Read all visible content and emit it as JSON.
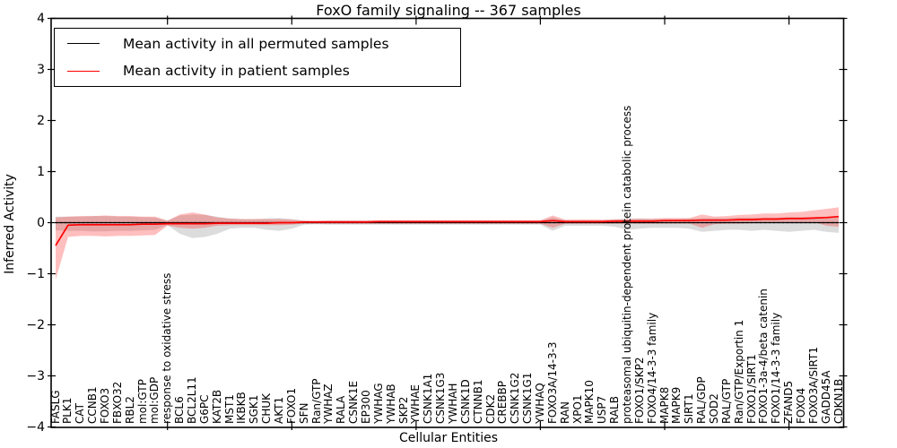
{
  "title": "FoxO family signaling -- 367 samples",
  "legend": {
    "items": [
      {
        "label": "Mean activity in all permuted samples",
        "color": "#000000"
      },
      {
        "label": "Mean activity in patient samples",
        "color": "#ff0000"
      }
    ]
  },
  "colors": {
    "patient_line": "#ff0000",
    "permuted_line": "#000000",
    "patient_band": "#ff2a2a",
    "permuted_band": "#8a8a8a",
    "axis": "#000000"
  },
  "chart_data": {
    "type": "line",
    "title": "FoxO family signaling -- 367 samples",
    "xlabel": "Cellular Entities",
    "ylabel": "Inferred Activity",
    "ylim": [
      -4,
      4
    ],
    "yticks": [
      4,
      3,
      2,
      1,
      0,
      -1,
      -2,
      -3,
      -4
    ],
    "y_tick_labels": [
      "4",
      "3",
      "2",
      "1",
      "0",
      "−1",
      "−2",
      "−3",
      "−4"
    ],
    "legend_position": "upper left",
    "grid": false,
    "zero_line": {
      "y": 0,
      "style": "dashed",
      "color": "#000000"
    },
    "categories": [
      "FASLG",
      "PLK1",
      "CAT",
      "CCNB1",
      "FOXO3",
      "FBXO32",
      "RBL2",
      "mol:GTP",
      "mol:GDP",
      "response to oxidative stress",
      "BCL6",
      "BCL2L11",
      "G6PC",
      "KAT2B",
      "MST1",
      "IKBKB",
      "SGK1",
      "CHUK",
      "AKT1",
      "FOXO1",
      "SFN",
      "Ran/GTP",
      "YWHAZ",
      "RALA",
      "CSNK1E",
      "EP300",
      "YWHAG",
      "YWHAB",
      "SKP2",
      "YWHAE",
      "CSNK1A1",
      "CSNK1G3",
      "YWHAH",
      "CSNK1D",
      "CTNNB1",
      "CDK2",
      "CREBBP",
      "CSNK1G2",
      "CSNK1G1",
      "YWHAQ",
      "FOXO3A/14-3-3",
      "RAN",
      "XPO1",
      "MAPK10",
      "USP7",
      "RALB",
      "proteasomal ubiquitin-dependent protein catabolic process",
      "FOXO1/SKP2",
      "FOXO4/14-3-3 family",
      "MAPK8",
      "MAPK9",
      "SIRT1",
      "RAL/GDP",
      "SOD2",
      "RAL/GTP",
      "Ran/GTP/Exportin 1",
      "FOXO1/SIRT1",
      "FOXO1-3a-4/beta catenin",
      "FOXO1/14-3-3 family",
      "ZFAND5",
      "FOXO4",
      "FOXO3A/SIRT1",
      "GADD45A",
      "CDKN1B"
    ],
    "series": [
      {
        "name": "Mean activity in all permuted samples",
        "color": "#000000",
        "values": [
          0,
          0,
          0,
          0,
          0,
          0,
          0,
          0,
          0,
          0,
          0,
          0,
          0,
          0,
          0,
          0,
          0,
          0,
          0,
          0,
          0,
          0,
          0,
          0,
          0,
          0,
          0,
          0,
          0,
          0,
          0,
          0,
          0,
          0,
          0,
          0,
          0,
          0,
          0,
          0,
          0,
          0,
          0,
          0,
          0,
          0,
          0,
          0,
          0,
          0,
          0,
          0,
          0,
          0,
          0,
          0,
          0,
          0,
          0,
          0,
          0,
          0,
          0,
          0
        ]
      },
      {
        "name": "Mean activity in patient samples",
        "color": "#ff0000",
        "values": [
          -0.45,
          -0.05,
          -0.04,
          -0.04,
          -0.04,
          -0.04,
          -0.04,
          -0.03,
          -0.03,
          -0.02,
          -0.02,
          -0.02,
          -0.02,
          -0.01,
          -0.01,
          -0.01,
          -0.01,
          -0.01,
          0,
          0,
          0.01,
          0.01,
          0.01,
          0.01,
          0.01,
          0.01,
          0.02,
          0.02,
          0.02,
          0.02,
          0.02,
          0.02,
          0.02,
          0.02,
          0.02,
          0.02,
          0.02,
          0.02,
          0.02,
          0.02,
          0.04,
          0.02,
          0.02,
          0.02,
          0.02,
          0.03,
          0.03,
          0.03,
          0.03,
          0.04,
          0.04,
          0.04,
          0.05,
          0.05,
          0.05,
          0.06,
          0.06,
          0.07,
          0.07,
          0.08,
          0.08,
          0.09,
          0.1,
          0.12
        ]
      }
    ],
    "bands": [
      {
        "name": "permuted-samples-std-band",
        "color": "#8a8a8a",
        "opacity": 0.3,
        "lower": [
          -0.15,
          -0.16,
          -0.16,
          -0.17,
          -0.17,
          -0.16,
          -0.16,
          -0.15,
          -0.14,
          -0.05,
          -0.22,
          -0.3,
          -0.28,
          -0.22,
          -0.12,
          -0.1,
          -0.1,
          -0.14,
          -0.16,
          -0.12,
          -0.04,
          -0.03,
          -0.04,
          -0.04,
          -0.04,
          -0.04,
          -0.04,
          -0.04,
          -0.04,
          -0.04,
          -0.04,
          -0.04,
          -0.04,
          -0.04,
          -0.04,
          -0.04,
          -0.04,
          -0.04,
          -0.04,
          -0.04,
          -0.16,
          -0.06,
          -0.06,
          -0.06,
          -0.06,
          -0.08,
          -0.14,
          -0.12,
          -0.1,
          -0.1,
          -0.1,
          -0.12,
          -0.18,
          -0.16,
          -0.14,
          -0.14,
          -0.16,
          -0.14,
          -0.16,
          -0.18,
          -0.16,
          -0.14,
          -0.18,
          -0.2
        ],
        "upper": [
          0.12,
          0.12,
          0.12,
          0.13,
          0.13,
          0.12,
          0.12,
          0.11,
          0.1,
          0.04,
          0.14,
          0.16,
          0.15,
          0.12,
          0.08,
          0.07,
          0.07,
          0.08,
          0.09,
          0.07,
          0.04,
          0.03,
          0.04,
          0.04,
          0.04,
          0.04,
          0.04,
          0.04,
          0.04,
          0.04,
          0.04,
          0.04,
          0.04,
          0.04,
          0.04,
          0.04,
          0.04,
          0.04,
          0.04,
          0.04,
          0.1,
          0.05,
          0.05,
          0.05,
          0.05,
          0.06,
          0.08,
          0.08,
          0.07,
          0.07,
          0.07,
          0.08,
          0.09,
          0.09,
          0.09,
          0.1,
          0.1,
          0.1,
          0.1,
          0.11,
          0.11,
          0.11,
          0.12,
          0.12
        ]
      },
      {
        "name": "patient-samples-std-band",
        "color": "#ff2a2a",
        "opacity": 0.3,
        "lower": [
          -1.12,
          -0.28,
          -0.26,
          -0.26,
          -0.27,
          -0.26,
          -0.26,
          -0.25,
          -0.24,
          -0.06,
          -0.1,
          -0.12,
          -0.1,
          -0.06,
          -0.05,
          -0.05,
          -0.05,
          -0.05,
          -0.05,
          -0.04,
          -0.02,
          -0.02,
          -0.02,
          -0.02,
          -0.02,
          -0.02,
          -0.02,
          -0.02,
          -0.02,
          -0.02,
          -0.02,
          -0.02,
          -0.02,
          -0.02,
          -0.02,
          -0.02,
          -0.02,
          -0.02,
          -0.02,
          -0.02,
          -0.1,
          -0.02,
          -0.02,
          -0.02,
          -0.02,
          -0.02,
          -0.02,
          -0.02,
          -0.02,
          -0.02,
          -0.02,
          -0.02,
          -0.1,
          -0.03,
          -0.02,
          -0.02,
          -0.01,
          0,
          0,
          0,
          0,
          0.01,
          -0.06,
          -0.08
        ],
        "upper": [
          0.1,
          0.12,
          0.13,
          0.13,
          0.14,
          0.13,
          0.13,
          0.12,
          0.12,
          0.04,
          0.16,
          0.2,
          0.16,
          0.1,
          0.08,
          0.07,
          0.07,
          0.07,
          0.07,
          0.06,
          0.04,
          0.04,
          0.05,
          0.05,
          0.05,
          0.05,
          0.05,
          0.05,
          0.05,
          0.05,
          0.05,
          0.05,
          0.05,
          0.05,
          0.05,
          0.05,
          0.05,
          0.05,
          0.05,
          0.05,
          0.14,
          0.06,
          0.06,
          0.06,
          0.06,
          0.07,
          0.07,
          0.08,
          0.08,
          0.09,
          0.09,
          0.09,
          0.16,
          0.12,
          0.13,
          0.15,
          0.16,
          0.18,
          0.18,
          0.2,
          0.21,
          0.24,
          0.27,
          0.3
        ]
      }
    ]
  }
}
